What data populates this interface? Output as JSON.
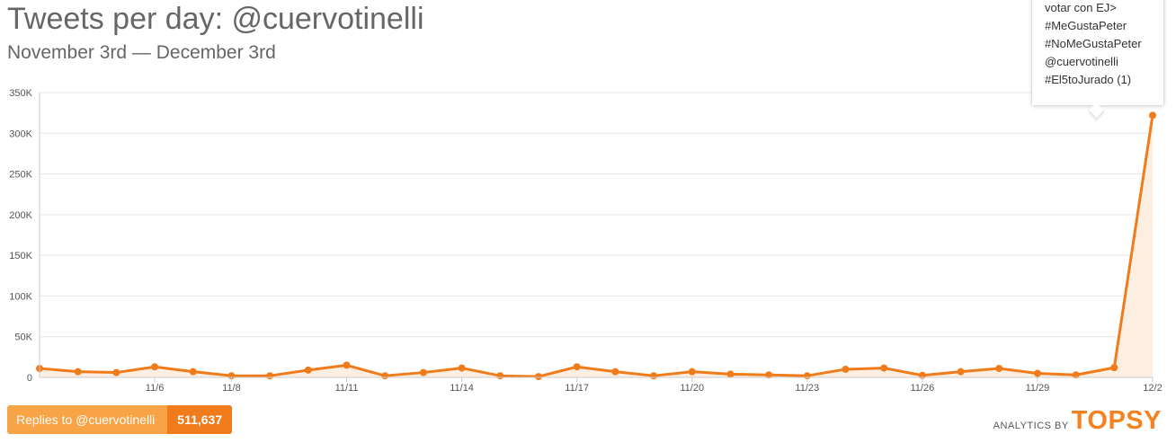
{
  "header": {
    "title": "Tweets per day: @cuervotinelli",
    "subtitle": "November 3rd — December 3rd"
  },
  "tooltip": {
    "lines": [
      "votar con EJ>",
      "#MeGustaPeter",
      "#NoMeGustaPeter",
      "@cuervotinelli",
      "#El5toJurado (1)"
    ]
  },
  "replies": {
    "label": "Replies to @cuervotinelli",
    "count": "511,637"
  },
  "branding": {
    "by_text": "ANALYTICS BY",
    "logo_text": "TOPSY"
  },
  "chart_data": {
    "type": "area",
    "title": "Tweets per day: @cuervotinelli",
    "subtitle": "November 3rd — December 3rd",
    "x": [
      "11/3",
      "11/4",
      "11/5",
      "11/6",
      "11/7",
      "11/8",
      "11/9",
      "11/10",
      "11/11",
      "11/12",
      "11/13",
      "11/14",
      "11/15",
      "11/16",
      "11/17",
      "11/18",
      "11/19",
      "11/20",
      "11/21",
      "11/22",
      "11/23",
      "11/24",
      "11/25",
      "11/26",
      "11/27",
      "11/28",
      "11/29",
      "11/30",
      "12/1",
      "12/2"
    ],
    "x_tick_labels": [
      "11/6",
      "11/8",
      "11/11",
      "11/14",
      "11/17",
      "11/20",
      "11/23",
      "11/26",
      "11/29",
      "12/2"
    ],
    "y_tick_labels": [
      "0",
      "50K",
      "100K",
      "150K",
      "200K",
      "250K",
      "300K",
      "350K"
    ],
    "ylim": [
      0,
      350000
    ],
    "grid": true,
    "series": [
      {
        "values": [
          11000,
          7000,
          6000,
          13000,
          7000,
          2000,
          2000,
          9000,
          15000,
          2000,
          6000,
          11500,
          2000,
          1000,
          13000,
          7000,
          2000,
          7000,
          4000,
          3000,
          2000,
          10000,
          11500,
          2500,
          7000,
          11000,
          5000,
          3000,
          12000,
          322000
        ]
      }
    ],
    "colors": {
      "line": "#f07b1a",
      "fill": "#fdeee2",
      "grid": "#e6e6e6",
      "axis": "#cccccc"
    }
  }
}
